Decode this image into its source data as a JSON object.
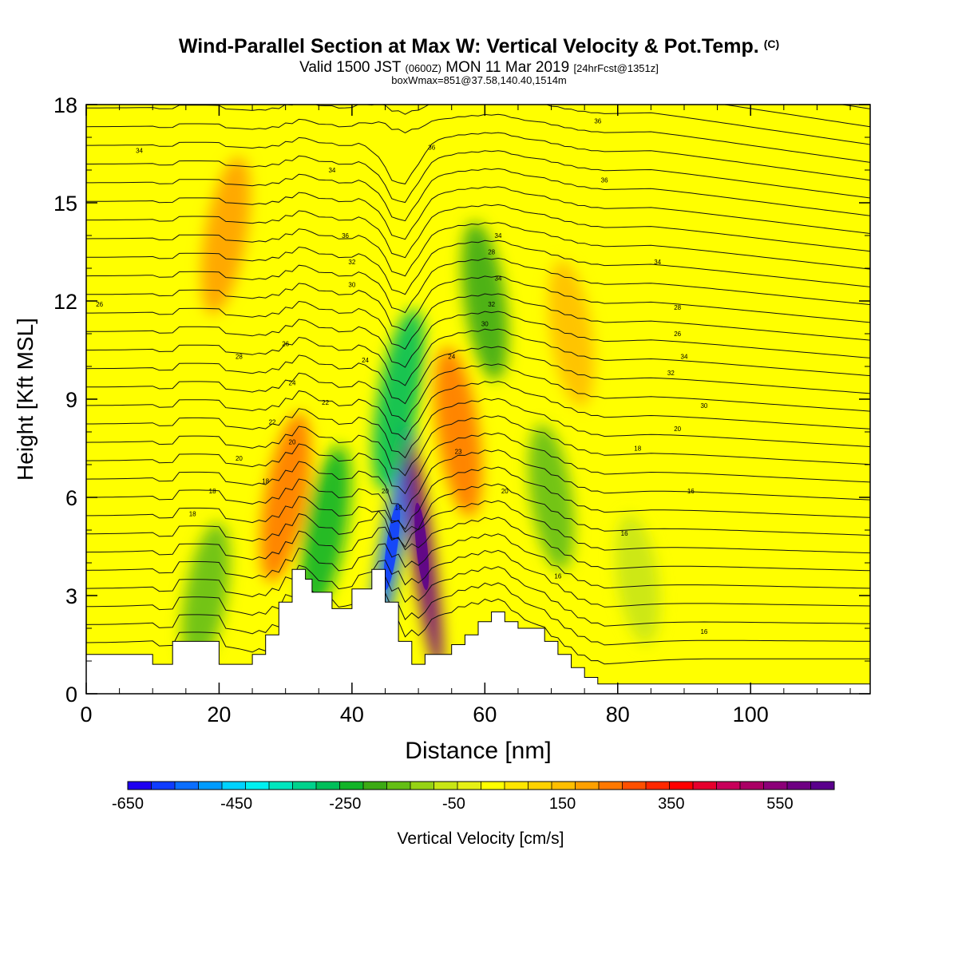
{
  "title": {
    "main": "Wind-Parallel Section at Max W: Vertical Velocity & Pot.Temp.",
    "main_suffix": "(C)",
    "valid_a": "Valid 1500 JST",
    "valid_b": "(0600Z)",
    "valid_c": "MON 11 Mar 2019",
    "valid_d": "[24hrFcst@1351z]",
    "box": "boxWmax=851@37.58,140.40,1514m"
  },
  "chart_data": {
    "type": "heatmap",
    "xlabel": "Distance [nm]",
    "ylabel": "Height [Kft MSL]",
    "xlim": [
      0,
      118
    ],
    "ylim": [
      0,
      18
    ],
    "x_ticks": [
      0,
      20,
      40,
      60,
      80,
      100
    ],
    "y_ticks": [
      0,
      3,
      6,
      9,
      12,
      15,
      18
    ],
    "grid": false,
    "colorbar": {
      "label": "Vertical Velocity [cm/s]",
      "range": [
        -650,
        650
      ],
      "tick_labels": [
        -650,
        -450,
        -250,
        -50,
        150,
        350,
        550
      ],
      "colors": [
        "#1e00f0",
        "#0f3cff",
        "#0a6eff",
        "#009bff",
        "#00d2ff",
        "#00f0f0",
        "#00e6be",
        "#00d28c",
        "#00be5a",
        "#12b428",
        "#3caa14",
        "#64be14",
        "#96d214",
        "#c8e614",
        "#e6f014",
        "#ffff00",
        "#ffe600",
        "#ffd200",
        "#ffbe00",
        "#ffa000",
        "#ff7800",
        "#ff5000",
        "#ff2800",
        "#ff0000",
        "#e6002d",
        "#c8005a",
        "#aa0064",
        "#8c0078",
        "#6e0082",
        "#5a008c"
      ]
    },
    "terrain_kft": {
      "x": [
        0,
        10,
        10,
        13,
        13,
        15,
        15,
        20,
        20,
        25,
        25,
        27,
        27,
        29,
        29,
        31,
        31,
        33,
        33,
        34,
        34,
        37,
        37,
        40,
        40,
        43,
        43,
        45,
        45,
        47,
        47,
        49,
        49,
        51,
        51,
        55,
        55,
        57,
        57,
        59,
        59,
        61,
        61,
        63,
        63,
        65,
        65,
        69,
        69,
        71,
        71,
        73,
        73,
        75,
        75,
        77,
        77,
        80,
        80,
        118
      ],
      "y": [
        1.2,
        1.2,
        0.9,
        0.9,
        1.6,
        1.6,
        1.6,
        1.6,
        0.9,
        0.9,
        1.2,
        1.2,
        1.8,
        1.8,
        2.8,
        2.8,
        3.8,
        3.8,
        3.5,
        3.5,
        3.1,
        3.1,
        2.6,
        2.6,
        3.2,
        3.2,
        3.8,
        3.8,
        2.8,
        2.8,
        1.6,
        1.6,
        0.9,
        0.9,
        1.2,
        1.2,
        1.5,
        1.5,
        1.8,
        1.8,
        2.2,
        2.2,
        2.5,
        2.5,
        2.2,
        2.2,
        2.0,
        2.0,
        1.6,
        1.6,
        1.2,
        1.2,
        0.8,
        0.8,
        0.5,
        0.5,
        0.3,
        0.3,
        0.3,
        0.3
      ]
    },
    "vertical_velocity_features_cm_s": [
      {
        "x": 46,
        "y": 4.5,
        "w": -550
      },
      {
        "x": 50.5,
        "y": 4.5,
        "w": 600
      },
      {
        "x": 47,
        "y": 9,
        "w": -300
      },
      {
        "x": 60,
        "y": 12,
        "w": -200
      },
      {
        "x": 56,
        "y": 8,
        "w": 250
      },
      {
        "x": 30,
        "y": 6,
        "w": 250
      },
      {
        "x": 21,
        "y": 14,
        "w": 200
      },
      {
        "x": 36,
        "y": 5,
        "w": -250
      },
      {
        "x": 18,
        "y": 3,
        "w": -150
      },
      {
        "x": 70,
        "y": 6,
        "w": -150
      },
      {
        "x": 73,
        "y": 11,
        "w": 150
      },
      {
        "x": 83,
        "y": 3.5,
        "w": -80
      }
    ],
    "contour_labels": [
      "34",
      "34",
      "36",
      "36",
      "36",
      "34",
      "34",
      "26",
      "36",
      "32",
      "30",
      "28",
      "34",
      "32",
      "30",
      "28",
      "26",
      "34",
      "32",
      "30",
      "28",
      "26",
      "24",
      "22",
      "20",
      "18",
      "24",
      "22",
      "20",
      "18",
      "18",
      "20",
      "18",
      "16",
      "24",
      "23",
      "20",
      "20",
      "18",
      "16",
      "16",
      "16"
    ]
  }
}
